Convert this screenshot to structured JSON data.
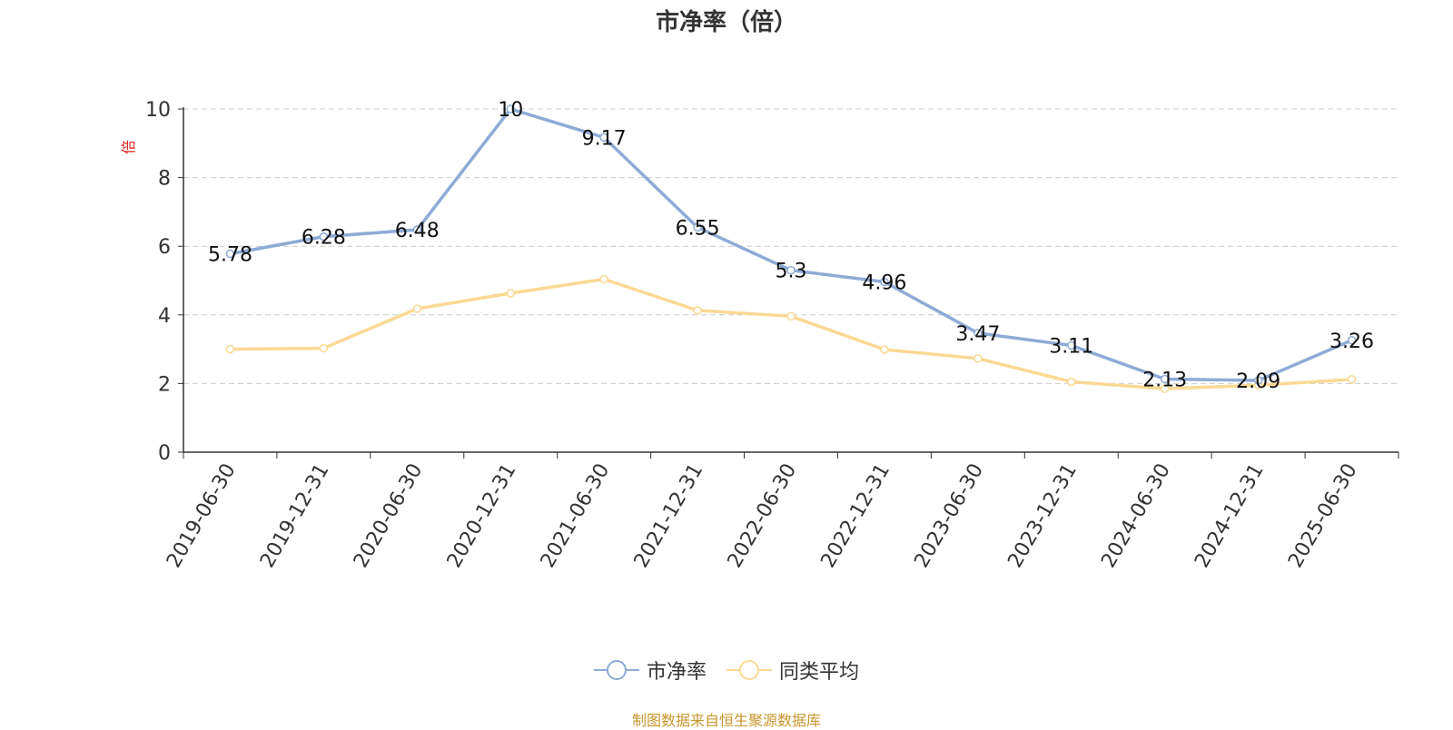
{
  "chart_data": {
    "type": "line",
    "title": "市净率（倍）",
    "ylabel": "倍",
    "categories": [
      "2019-06-30",
      "2019-12-31",
      "2020-06-30",
      "2020-12-31",
      "2021-06-30",
      "2021-12-31",
      "2022-06-30",
      "2022-12-31",
      "2023-06-30",
      "2023-12-31",
      "2024-06-30",
      "2024-12-31",
      "2025-06-30"
    ],
    "ylim": [
      0,
      10
    ],
    "yticks": [
      "0",
      "2",
      "4",
      "6",
      "8",
      "10"
    ],
    "grid": "horizontal dashed",
    "legend_position": "bottom",
    "series": [
      {
        "name": "市净率",
        "color": "#8eaad6",
        "values": [
          5.78,
          6.28,
          6.48,
          10,
          9.17,
          6.55,
          5.3,
          4.96,
          3.47,
          3.11,
          2.13,
          2.09,
          3.26
        ],
        "labels": [
          "5.78",
          "6.28",
          "6.48",
          "10",
          "9.17",
          "6.55",
          "5.3",
          "4.96",
          "3.47",
          "3.11",
          "2.13",
          "2.09",
          "3.26"
        ]
      },
      {
        "name": "同类平均",
        "color": "#fbd894",
        "values": [
          3.0,
          3.03,
          4.18,
          4.63,
          5.04,
          4.13,
          3.96,
          2.99,
          2.73,
          2.05,
          1.85,
          1.95,
          2.12
        ]
      }
    ]
  },
  "source_note": "制图数据来自恒生聚源数据库"
}
